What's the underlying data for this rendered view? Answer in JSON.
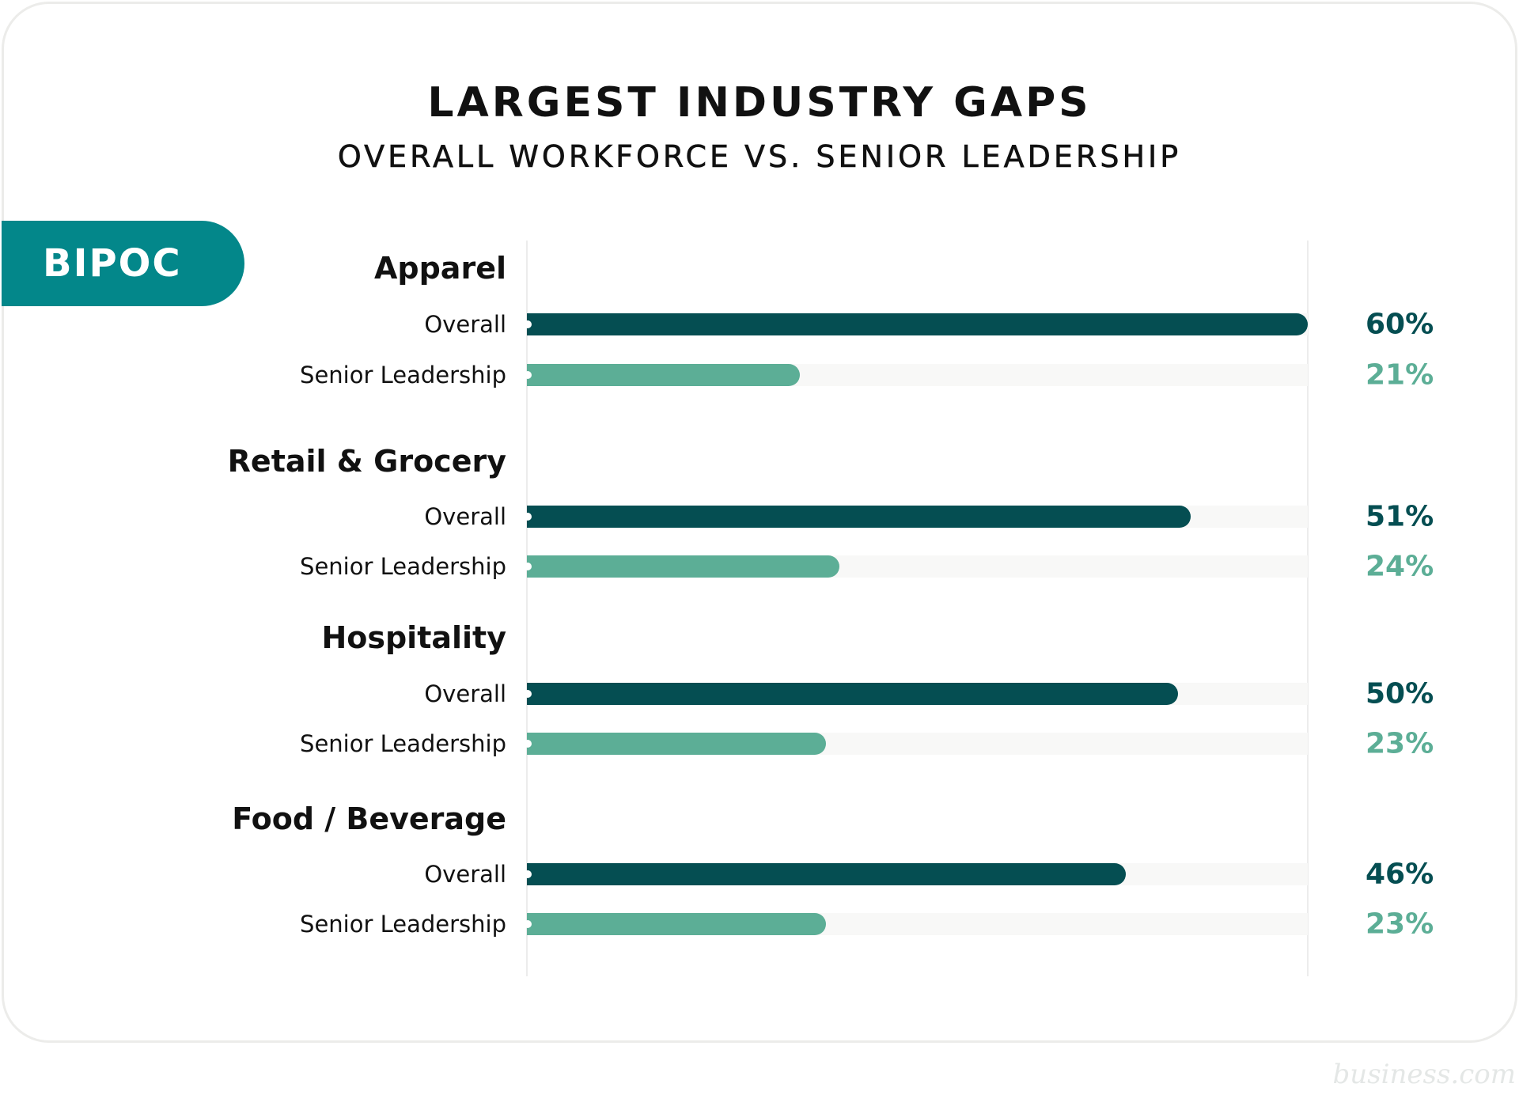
{
  "colors": {
    "overall": "#054e52",
    "senior": "#5cae96",
    "pill": "#03878a"
  },
  "chart_data": {
    "type": "bar",
    "title": "LARGEST INDUSTRY GAPS",
    "subtitle": "OVERALL WORKFORCE VS. SENIOR LEADERSHIP",
    "group_label": "BIPOC",
    "xlim": [
      0,
      60
    ],
    "unit": "%",
    "categories": [
      "Apparel",
      "Retail & Grocery",
      "Hospitality",
      "Food / Beverage"
    ],
    "series": [
      {
        "name": "Overall",
        "values": [
          60,
          51,
          50,
          46
        ],
        "labels": [
          "60%",
          "51%",
          "50%",
          "46%"
        ]
      },
      {
        "name": "Senior Leadership",
        "values": [
          21,
          24,
          23,
          23
        ],
        "labels": [
          "21%",
          "24%",
          "23%",
          "23%"
        ]
      }
    ]
  },
  "watermark": "business.com"
}
